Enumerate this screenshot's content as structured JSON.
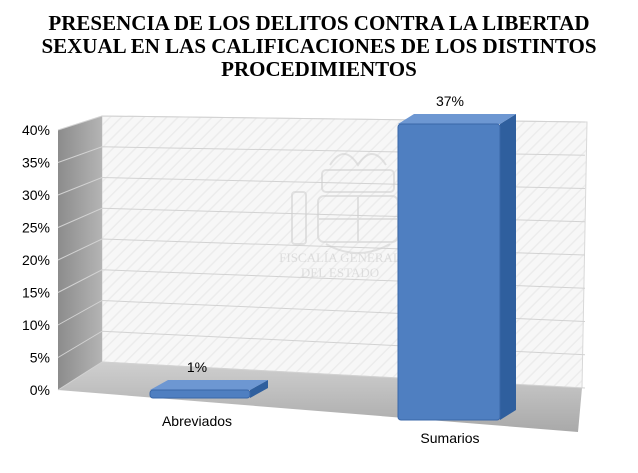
{
  "chart_data": {
    "type": "bar",
    "title_lines": [
      "PRESENCIA DE LOS DELITOS CONTRA LA LIBERTAD",
      "SEXUAL EN LAS CALIFICACIONES DE LOS DISTINTOS",
      "PROCEDIMIENTOS"
    ],
    "categories": [
      "Abreviados",
      "Sumarios"
    ],
    "values": [
      1,
      37
    ],
    "data_labels": [
      "1%",
      "37%"
    ],
    "y_ticks": [
      "0%",
      "5%",
      "10%",
      "15%",
      "20%",
      "25%",
      "30%",
      "35%",
      "40%"
    ],
    "ylim": [
      0,
      40
    ],
    "grid": true,
    "legend": "none",
    "style": "3d-column",
    "bar_color": "#4f7fc1",
    "watermark_lines": [
      "FISCALÍA GENERAL",
      "DEL ESTADO"
    ]
  }
}
